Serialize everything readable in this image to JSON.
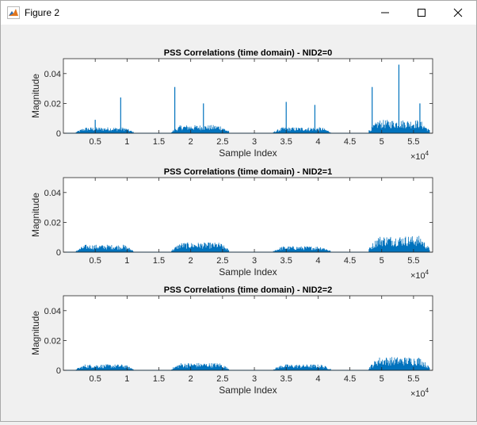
{
  "window": {
    "title": "Figure 2",
    "icon": "matlab-figure-icon",
    "controls": [
      "minimize-icon",
      "maximize-icon",
      "close-icon"
    ]
  },
  "colors": {
    "series": "#0072bd",
    "axes_bg": "#ffffff",
    "figure_bg": "#f0f0f0",
    "axis_line": "#262626"
  },
  "chart_data": [
    {
      "type": "line",
      "title": "PSS Correlations (time domain) - NID2=0",
      "xlabel": "Sample Index",
      "ylabel": "Magnitude",
      "x_exponent_label": "×10",
      "x_exponent": "4",
      "xlim": [
        0,
        5.8
      ],
      "ylim": [
        0,
        0.05
      ],
      "xticks": [
        0.5,
        1,
        1.5,
        2,
        2.5,
        3,
        3.5,
        4,
        4.5,
        5,
        5.5
      ],
      "xtick_labels": [
        "0.5",
        "1",
        "1.5",
        "2",
        "2.5",
        "3",
        "3.5",
        "4",
        "4.5",
        "5",
        "5.5"
      ],
      "yticks": [
        0,
        0.02,
        0.04
      ],
      "ytick_labels": [
        "0",
        "0.02",
        "0.04"
      ],
      "segments": [
        {
          "x_start": 0.2,
          "x_end": 1.1,
          "noise_peak": 0.004
        },
        {
          "x_start": 1.7,
          "x_end": 2.6,
          "noise_peak": 0.0055
        },
        {
          "x_start": 3.3,
          "x_end": 4.2,
          "noise_peak": 0.004
        },
        {
          "x_start": 4.8,
          "x_end": 5.75,
          "noise_peak": 0.009
        }
      ],
      "peaks": [
        {
          "x": 0.5,
          "y": 0.009
        },
        {
          "x": 0.9,
          "y": 0.024
        },
        {
          "x": 1.75,
          "y": 0.031
        },
        {
          "x": 2.2,
          "y": 0.02
        },
        {
          "x": 3.5,
          "y": 0.021
        },
        {
          "x": 3.95,
          "y": 0.019
        },
        {
          "x": 4.85,
          "y": 0.031
        },
        {
          "x": 5.27,
          "y": 0.046
        },
        {
          "x": 5.6,
          "y": 0.02
        }
      ]
    },
    {
      "type": "line",
      "title": "PSS Correlations (time domain) - NID2=1",
      "xlabel": "Sample Index",
      "ylabel": "Magnitude",
      "x_exponent_label": "×10",
      "x_exponent": "4",
      "xlim": [
        0,
        5.8
      ],
      "ylim": [
        0,
        0.05
      ],
      "xticks": [
        0.5,
        1,
        1.5,
        2,
        2.5,
        3,
        3.5,
        4,
        4.5,
        5,
        5.5
      ],
      "xtick_labels": [
        "0.5",
        "1",
        "1.5",
        "2",
        "2.5",
        "3",
        "3.5",
        "4",
        "4.5",
        "5",
        "5.5"
      ],
      "yticks": [
        0,
        0.02,
        0.04
      ],
      "ytick_labels": [
        "0",
        "0.02",
        "0.04"
      ],
      "segments": [
        {
          "x_start": 0.2,
          "x_end": 1.1,
          "noise_peak": 0.005
        },
        {
          "x_start": 1.7,
          "x_end": 2.6,
          "noise_peak": 0.0065
        },
        {
          "x_start": 3.3,
          "x_end": 4.2,
          "noise_peak": 0.004
        },
        {
          "x_start": 4.8,
          "x_end": 5.75,
          "noise_peak": 0.011
        }
      ],
      "peaks": []
    },
    {
      "type": "line",
      "title": "PSS Correlations (time domain) - NID2=2",
      "xlabel": "Sample Index",
      "ylabel": "Magnitude",
      "x_exponent_label": "×10",
      "x_exponent": "4",
      "xlim": [
        0,
        5.8
      ],
      "ylim": [
        0,
        0.05
      ],
      "xticks": [
        0.5,
        1,
        1.5,
        2,
        2.5,
        3,
        3.5,
        4,
        4.5,
        5,
        5.5
      ],
      "xtick_labels": [
        "0.5",
        "1",
        "1.5",
        "2",
        "2.5",
        "3",
        "3.5",
        "4",
        "4.5",
        "5",
        "5.5"
      ],
      "yticks": [
        0,
        0.02,
        0.04
      ],
      "ytick_labels": [
        "0",
        "0.02",
        "0.04"
      ],
      "segments": [
        {
          "x_start": 0.2,
          "x_end": 1.1,
          "noise_peak": 0.004
        },
        {
          "x_start": 1.7,
          "x_end": 2.6,
          "noise_peak": 0.005
        },
        {
          "x_start": 3.3,
          "x_end": 4.2,
          "noise_peak": 0.004
        },
        {
          "x_start": 4.8,
          "x_end": 5.75,
          "noise_peak": 0.009
        }
      ],
      "peaks": []
    }
  ]
}
